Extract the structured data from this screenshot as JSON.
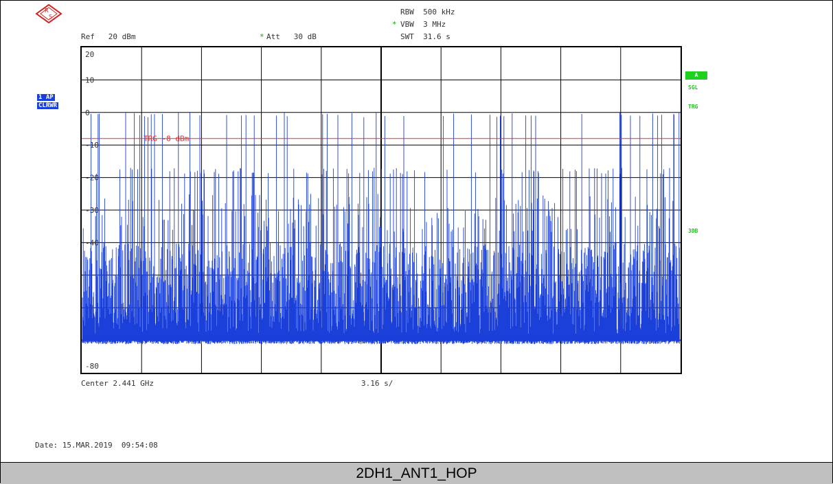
{
  "header": {
    "rbw": "RBW  500 kHz",
    "vbw_star": "*",
    "vbw": "VBW  3 MHz",
    "swt": "SWT  31.6 s",
    "ref": "Ref   20 dBm",
    "att_star": "*",
    "att": "Att   30 dB"
  },
  "left_tags": {
    "trace": "1 AP",
    "mode": "CLRWR"
  },
  "right_tags": {
    "a": "A",
    "sgl": "SGL",
    "trg": "TRG",
    "db3": "3DB"
  },
  "colors": {
    "trace": "#1b3fd9",
    "trigger_line": "#e03030",
    "green": "#20c020",
    "grid": "#000000"
  },
  "chart_data": {
    "type": "line",
    "title": "",
    "xlabel": "Center 2.441 GHz",
    "x_div_label": "3.16 s/",
    "ylabel": "",
    "ylim": [
      -80,
      20
    ],
    "y_tick_labels": [
      {
        "value": 20,
        "label": "20"
      },
      {
        "value": 10,
        "label": "10"
      },
      {
        "value": 0,
        "label": "0"
      },
      {
        "value": -10,
        "label": "-10"
      },
      {
        "value": -20,
        "label": "-20"
      },
      {
        "value": -30,
        "label": "-30"
      },
      {
        "value": -40,
        "label": "-40"
      },
      {
        "value": -80,
        "label": "-80"
      }
    ],
    "trigger": {
      "level_dbm": -8,
      "label": "TRG  -8 dBm"
    },
    "sweep_time_s": 31.6,
    "noise_floor_dbm": -70,
    "pulse_peak_dbm": 0,
    "series": [
      {
        "trace": "1 AP CLRWR"
      }
    ]
  },
  "footer": {
    "date": "Date: 15.MAR.2019  09:54:08"
  },
  "caption": "2DH1_ANT1_HOP"
}
